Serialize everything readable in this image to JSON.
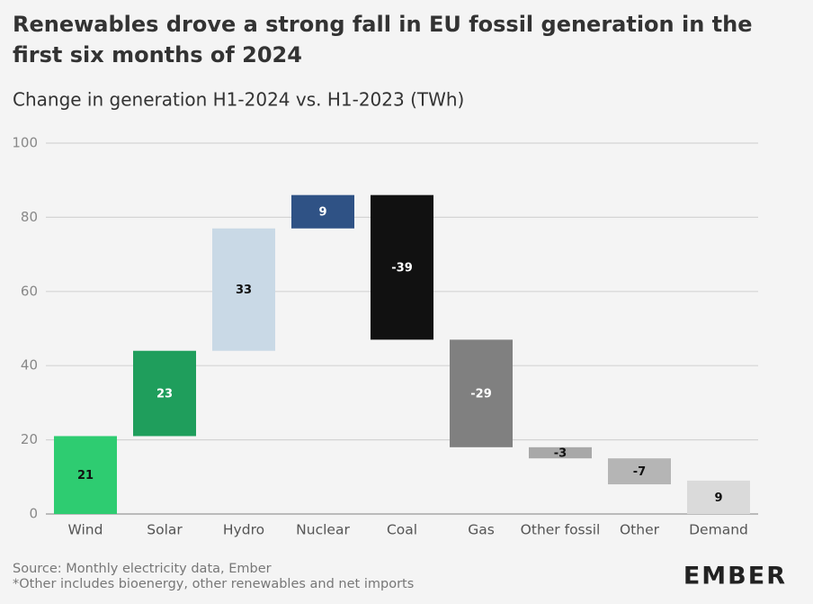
{
  "chart_data": {
    "type": "waterfall",
    "title": "Renewables drove a strong fall in EU fossil generation in the first six months of 2024",
    "subtitle": "Change in generation H1-2024 vs. H1-2023 (TWh)",
    "categories": [
      "Wind",
      "Solar",
      "Hydro",
      "Nuclear",
      "Coal",
      "Gas",
      "Other fossil",
      "Other",
      "Demand"
    ],
    "values": [
      21,
      23,
      33,
      9,
      -39,
      -29,
      -3,
      -7,
      9
    ],
    "measure": [
      "relative",
      "relative",
      "relative",
      "relative",
      "relative",
      "relative",
      "relative",
      "relative",
      "total"
    ],
    "colors": [
      "#2ecc71",
      "#1f9e5c",
      "#c9d9e6",
      "#2f5285",
      "#111111",
      "#808080",
      "#a8a8a8",
      "#b5b5b5",
      "#dadada"
    ],
    "ylim": [
      0,
      100
    ],
    "yticks": [
      0,
      20,
      40,
      60,
      80,
      100
    ],
    "grid": true,
    "source": "Source: Monthly electricity data, Ember",
    "note": "*Other includes bioenergy, other renewables and net imports",
    "logo": "EMBER"
  }
}
